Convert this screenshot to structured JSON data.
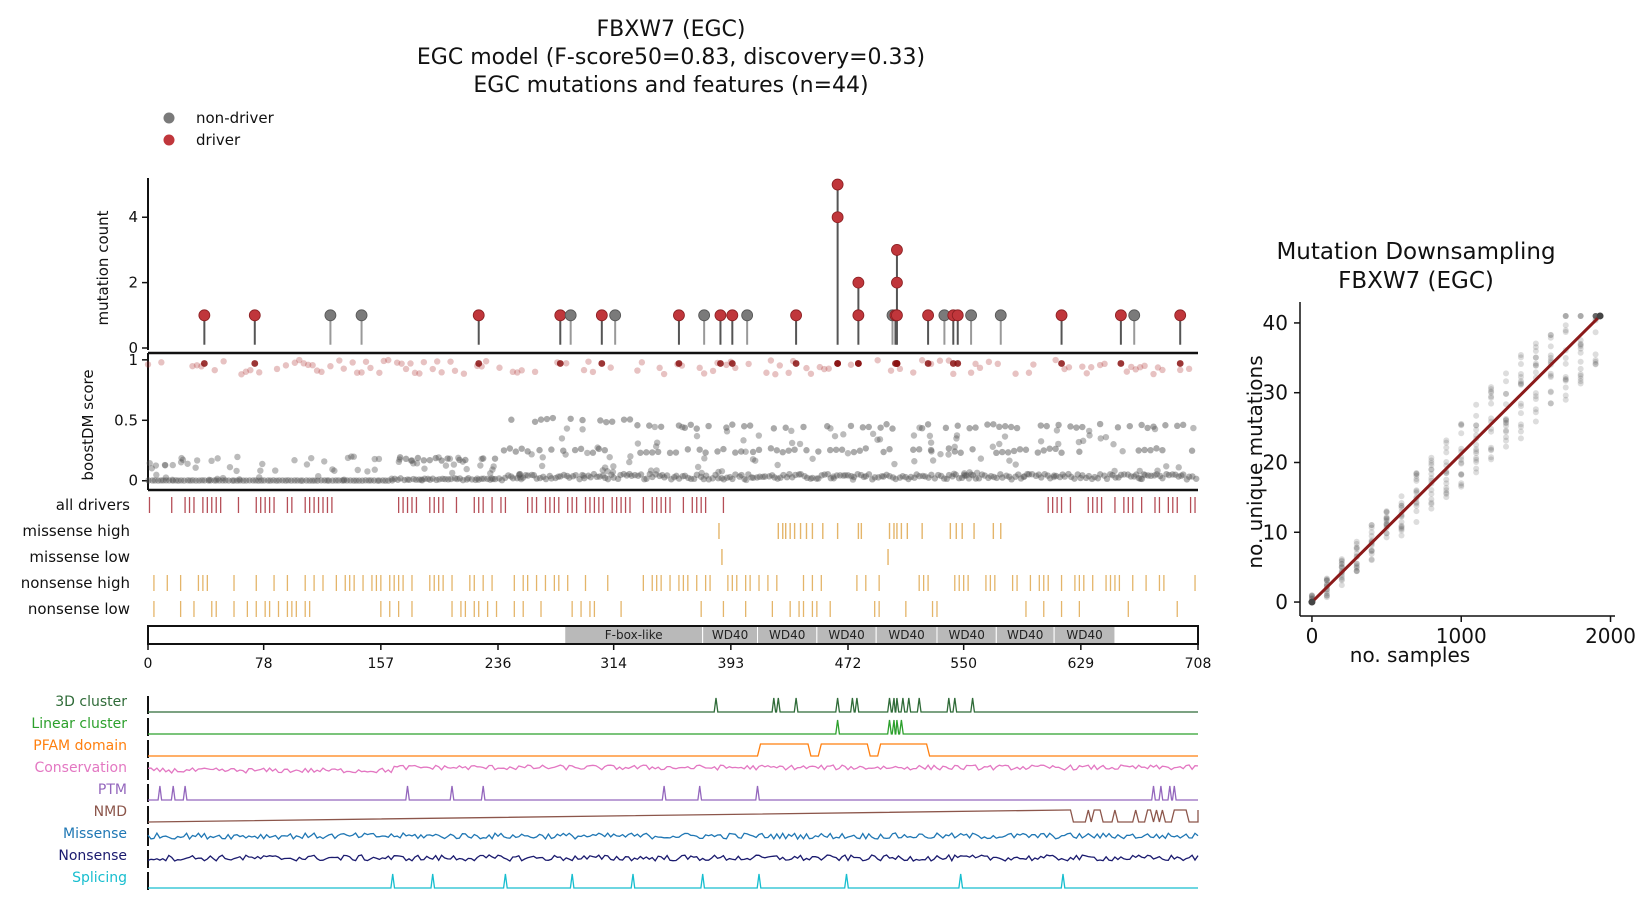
{
  "left_panel": {
    "title_lines": [
      "FBXW7 (EGC)",
      "EGC model (F-score50=0.83, discovery=0.33)",
      "EGC mutations and features (n=44)"
    ],
    "legend": [
      {
        "label": "non-driver",
        "color": "#7a7a7a"
      },
      {
        "label": "driver",
        "color": "#c0363b"
      }
    ]
  },
  "right_panel": {
    "title_lines": [
      "Mutation Downsampling",
      "FBXW7 (EGC)"
    ]
  },
  "chart_data": [
    {
      "type": "scatter",
      "subtype": "lollipop",
      "name": "mutation counts",
      "ylabel": "mutation count",
      "ylim": [
        0,
        5.2
      ],
      "yticks": [
        0,
        2,
        4
      ],
      "xlim": [
        0,
        708
      ],
      "colors": {
        "non-driver": "#7a7a7a",
        "driver": "#c0363b"
      },
      "points": [
        {
          "x": 38,
          "y": 1,
          "driver": true
        },
        {
          "x": 72,
          "y": 1,
          "driver": true
        },
        {
          "x": 123,
          "y": 1,
          "driver": false
        },
        {
          "x": 144,
          "y": 1,
          "driver": false
        },
        {
          "x": 223,
          "y": 1,
          "driver": true
        },
        {
          "x": 278,
          "y": 1,
          "driver": true
        },
        {
          "x": 285,
          "y": 1,
          "driver": false
        },
        {
          "x": 306,
          "y": 1,
          "driver": true
        },
        {
          "x": 315,
          "y": 1,
          "driver": false
        },
        {
          "x": 358,
          "y": 1,
          "driver": true
        },
        {
          "x": 375,
          "y": 1,
          "driver": false
        },
        {
          "x": 386,
          "y": 1,
          "driver": true
        },
        {
          "x": 394,
          "y": 1,
          "driver": true
        },
        {
          "x": 404,
          "y": 1,
          "driver": false
        },
        {
          "x": 437,
          "y": 1,
          "driver": true
        },
        {
          "x": 465,
          "y": 5,
          "driver": true
        },
        {
          "x": 465,
          "y": 4,
          "driver": true
        },
        {
          "x": 479,
          "y": 2,
          "driver": true
        },
        {
          "x": 479,
          "y": 1,
          "driver": true
        },
        {
          "x": 502,
          "y": 1,
          "driver": false
        },
        {
          "x": 504,
          "y": 1,
          "driver": true
        },
        {
          "x": 505,
          "y": 3,
          "driver": true
        },
        {
          "x": 505,
          "y": 2,
          "driver": true
        },
        {
          "x": 505,
          "y": 1,
          "driver": true
        },
        {
          "x": 526,
          "y": 1,
          "driver": true
        },
        {
          "x": 537,
          "y": 1,
          "driver": false
        },
        {
          "x": 543,
          "y": 1,
          "driver": true
        },
        {
          "x": 546,
          "y": 1,
          "driver": true
        },
        {
          "x": 555,
          "y": 1,
          "driver": false
        },
        {
          "x": 575,
          "y": 1,
          "driver": false
        },
        {
          "x": 616,
          "y": 1,
          "driver": true
        },
        {
          "x": 656,
          "y": 1,
          "driver": true
        },
        {
          "x": 665,
          "y": 1,
          "driver": false
        },
        {
          "x": 696,
          "y": 1,
          "driver": true
        }
      ]
    },
    {
      "type": "scatter",
      "name": "boostDM score",
      "ylabel": "boostDM score",
      "ylim": [
        -0.06,
        1.04
      ],
      "yticks": [
        0,
        0.5,
        1
      ],
      "yticklabels": [
        "0",
        "0.5",
        "1"
      ],
      "xlim": [
        0,
        708
      ],
      "colors": {
        "low": "#555555",
        "high": "#b03535"
      },
      "threshold": 0.5,
      "steps": [
        {
          "x0": 0,
          "x1": 165,
          "level": 0.01
        },
        {
          "x0": 165,
          "x1": 240,
          "level": 0.06
        },
        {
          "x0": 240,
          "x1": 708,
          "level": 0.16
        }
      ],
      "high_band": [
        0.88,
        1.0
      ],
      "mid_levels": [
        {
          "x0": 170,
          "x1": 235,
          "level": 0.18
        },
        {
          "x0": 240,
          "x1": 708,
          "level": 0.25
        },
        {
          "x0": 245,
          "x1": 330,
          "level": 0.5
        },
        {
          "x0": 330,
          "x1": 708,
          "level": 0.45
        }
      ]
    },
    {
      "type": "table",
      "name": "mutation tracks",
      "rows": [
        "all drivers",
        "missense high",
        "missense low",
        "nonsense high",
        "nonsense low"
      ],
      "colors": {
        "all drivers": "#a82f3a",
        "missense high": "#e4b56a",
        "missense low": "#e4b56a",
        "nonsense high": "#e4b56a",
        "nonsense low": "#e4b56a"
      },
      "missense_high_positions": [
        385,
        425,
        428,
        430,
        433,
        436,
        440,
        444,
        448,
        455,
        465,
        479,
        481,
        500,
        503,
        505,
        508,
        512,
        522,
        541,
        545,
        549,
        557,
        570,
        575
      ],
      "missense_low_positions": [
        387,
        499
      ],
      "all_drivers_density": 0.62,
      "nonsense_high_density": 0.45,
      "nonsense_low_density": 0.18
    },
    {
      "type": "bar",
      "name": "protein domains",
      "xlim": [
        0,
        708
      ],
      "xticks": [
        0,
        78,
        157,
        236,
        314,
        393,
        472,
        550,
        629,
        708
      ],
      "domains": [
        {
          "label": "F-box-like",
          "start": 281,
          "end": 374
        },
        {
          "label": "WD40",
          "start": 374,
          "end": 411
        },
        {
          "label": "WD40",
          "start": 411,
          "end": 451
        },
        {
          "label": "WD40",
          "start": 451,
          "end": 491
        },
        {
          "label": "WD40",
          "start": 491,
          "end": 532
        },
        {
          "label": "WD40",
          "start": 532,
          "end": 572
        },
        {
          "label": "WD40",
          "start": 572,
          "end": 611
        },
        {
          "label": "WD40",
          "start": 611,
          "end": 652
        }
      ]
    },
    {
      "type": "line",
      "name": "feature tracks",
      "xlim": [
        0,
        708
      ],
      "tracks": [
        {
          "label": "3D cluster",
          "color": "#2f6b38",
          "kind": "spikes",
          "positions": [
            383,
            422,
            425,
            437,
            465,
            475,
            478,
            500,
            503,
            505,
            509,
            513,
            520,
            540,
            544,
            556
          ]
        },
        {
          "label": "Linear cluster",
          "color": "#2ca02c",
          "kind": "spikes",
          "positions": [
            465,
            500,
            503,
            505,
            508
          ]
        },
        {
          "label": "PFAM domain",
          "color": "#ff7f0e",
          "kind": "steps",
          "segments": [
            [
              411,
              447
            ],
            [
              452,
              487
            ],
            [
              492,
              527
            ]
          ]
        },
        {
          "label": "Conservation",
          "color": "#e377c2",
          "kind": "noise"
        },
        {
          "label": "PTM",
          "color": "#9467bd",
          "kind": "spikes",
          "positions": [
            8,
            17,
            25,
            175,
            205,
            226,
            348,
            372,
            411,
            678,
            683,
            689,
            692
          ]
        },
        {
          "label": "NMD",
          "color": "#8c564b",
          "kind": "dense",
          "range": [
            620,
            708
          ]
        },
        {
          "label": "Missense",
          "color": "#1f77b4",
          "kind": "noise"
        },
        {
          "label": "Nonsense",
          "color": "#1a1a6e",
          "kind": "noise"
        },
        {
          "label": "Splicing",
          "color": "#17becf",
          "kind": "spikes",
          "positions": [
            165,
            192,
            241,
            286,
            327,
            374,
            412,
            471,
            548,
            617
          ]
        }
      ]
    },
    {
      "type": "scatter",
      "name": "downsampling",
      "xlabel": "no. samples",
      "ylabel": "no. unique mutations",
      "xlim": [
        -80,
        2030
      ],
      "ylim": [
        -2,
        43
      ],
      "xticks": [
        0,
        1000,
        2000
      ],
      "yticks": [
        0,
        10,
        20,
        30,
        40
      ],
      "fit_line": {
        "x": [
          0,
          1930
        ],
        "y": [
          0,
          41
        ],
        "color": "#8b1a1a"
      },
      "sample_points": [
        0,
        100,
        200,
        300,
        400,
        500,
        600,
        700,
        800,
        900,
        1000,
        1100,
        1200,
        1300,
        1400,
        1500,
        1600,
        1700,
        1800,
        1900
      ]
    }
  ]
}
